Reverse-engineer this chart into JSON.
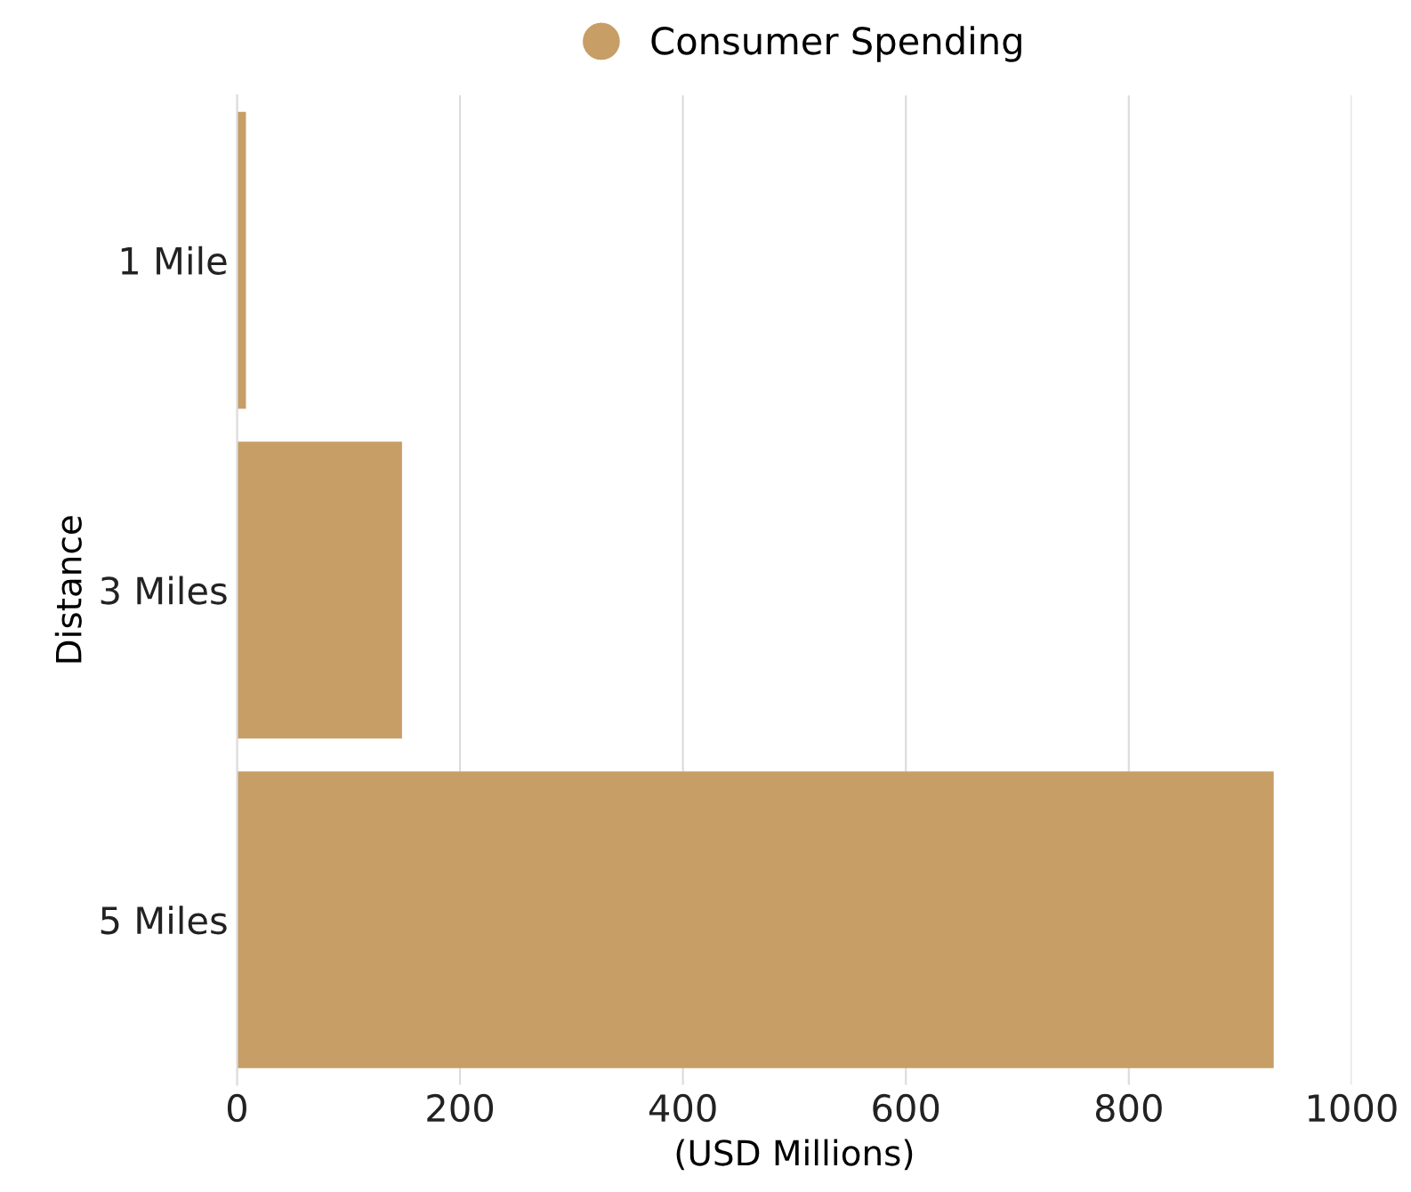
{
  "chart_data": {
    "type": "bar",
    "orientation": "horizontal",
    "categories": [
      "1 Mile",
      "3 Miles",
      "5 Miles"
    ],
    "series": [
      {
        "name": "Consumer Spending",
        "color": "#c79e66",
        "values": [
          8,
          148,
          930
        ]
      }
    ],
    "xlim": [
      0,
      1000
    ],
    "xticks": [
      0,
      200,
      400,
      600,
      800,
      1000
    ],
    "xlabel": "(USD Millions)",
    "ylabel": "Distance",
    "grid": "x",
    "legend": "top"
  }
}
